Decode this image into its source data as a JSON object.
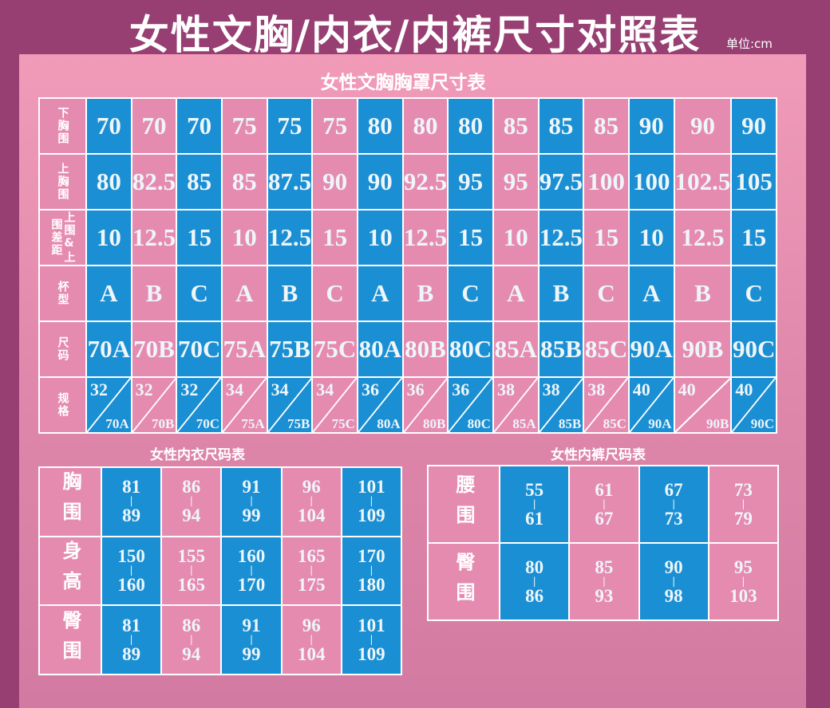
{
  "title": "女性文胸/内衣/内裤尺寸对照表",
  "unit": "单位:cm",
  "colors": {
    "background": "#973f73",
    "panel": "#f19bb9",
    "blue_cell": "#1b8fd3",
    "pink_cell": "#e68bb0"
  },
  "bra_table": {
    "title": "女性文胸胸罩尺寸表",
    "rows": [
      {
        "label": "下胸围",
        "values": [
          "70",
          "70",
          "70",
          "75",
          "75",
          "75",
          "80",
          "80",
          "80",
          "85",
          "85",
          "85",
          "90",
          "90",
          "90"
        ]
      },
      {
        "label": "上胸围",
        "values": [
          "80",
          "82.5",
          "85",
          "85",
          "87.5",
          "90",
          "90",
          "92.5",
          "95",
          "95",
          "97.5",
          "100",
          "100",
          "102.5",
          "105"
        ]
      },
      {
        "label": "上围&上围差距",
        "values": [
          "10",
          "12.5",
          "15",
          "10",
          "12.5",
          "15",
          "10",
          "12.5",
          "15",
          "10",
          "12.5",
          "15",
          "10",
          "12.5",
          "15"
        ]
      },
      {
        "label": "杯型",
        "values": [
          "A",
          "B",
          "C",
          "A",
          "B",
          "C",
          "A",
          "B",
          "C",
          "A",
          "B",
          "C",
          "A",
          "B",
          "C"
        ]
      },
      {
        "label": "尺码",
        "values": [
          "70A",
          "70B",
          "70C",
          "75A",
          "75B",
          "75C",
          "80A",
          "80B",
          "80C",
          "85A",
          "85B",
          "85C",
          "90A",
          "90B",
          "90C"
        ]
      }
    ],
    "spec_row": {
      "label": "规格",
      "values": [
        [
          "32",
          "70A"
        ],
        [
          "32",
          "70B"
        ],
        [
          "32",
          "70C"
        ],
        [
          "34",
          "75A"
        ],
        [
          "34",
          "75B"
        ],
        [
          "34",
          "75C"
        ],
        [
          "36",
          "80A"
        ],
        [
          "36",
          "80B"
        ],
        [
          "36",
          "80C"
        ],
        [
          "38",
          "85A"
        ],
        [
          "38",
          "85B"
        ],
        [
          "38",
          "85C"
        ],
        [
          "40",
          "90A"
        ],
        [
          "40",
          "90B"
        ],
        [
          "40",
          "90C"
        ]
      ]
    }
  },
  "underwear_table": {
    "title": "女性内衣尺码表",
    "rows": [
      {
        "label": "胸围",
        "values": [
          [
            "81",
            "89"
          ],
          [
            "86",
            "94"
          ],
          [
            "91",
            "99"
          ],
          [
            "96",
            "104"
          ],
          [
            "101",
            "109"
          ]
        ]
      },
      {
        "label": "身高",
        "values": [
          [
            "150",
            "160"
          ],
          [
            "155",
            "165"
          ],
          [
            "160",
            "170"
          ],
          [
            "165",
            "175"
          ],
          [
            "170",
            "180"
          ]
        ]
      },
      {
        "label": "臀围",
        "values": [
          [
            "81",
            "89"
          ],
          [
            "86",
            "94"
          ],
          [
            "91",
            "99"
          ],
          [
            "96",
            "104"
          ],
          [
            "101",
            "109"
          ]
        ]
      }
    ]
  },
  "panties_table": {
    "title": "女性内裤尺码表",
    "rows": [
      {
        "label": "腰围",
        "values": [
          [
            "55",
            "61"
          ],
          [
            "61",
            "67"
          ],
          [
            "67",
            "73"
          ],
          [
            "73",
            "79"
          ]
        ]
      },
      {
        "label": "臀围",
        "values": [
          [
            "80",
            "86"
          ],
          [
            "85",
            "93"
          ],
          [
            "90",
            "98"
          ],
          [
            "95",
            "103"
          ]
        ]
      }
    ]
  }
}
